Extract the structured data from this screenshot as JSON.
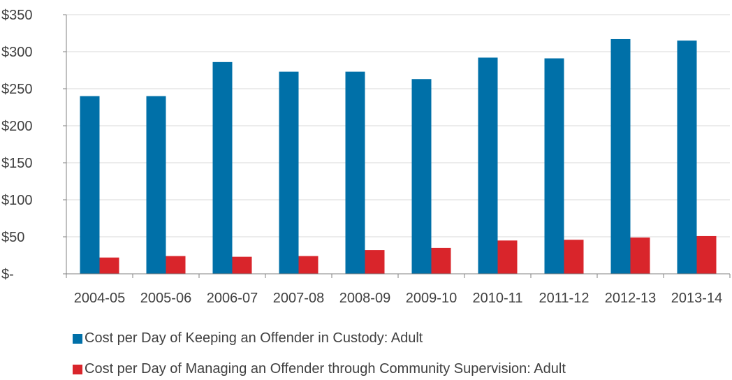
{
  "chart_data": {
    "type": "bar",
    "categories": [
      "2004-05",
      "2005-06",
      "2006-07",
      "2007-08",
      "2008-09",
      "2009-10",
      "2010-11",
      "2011-12",
      "2012-13",
      "2013-14"
    ],
    "series": [
      {
        "name": "Cost per Day of Keeping an Offender in Custody: Adult",
        "color": "#0070a8",
        "values": [
          240,
          240,
          286,
          273,
          273,
          263,
          292,
          291,
          317,
          315
        ]
      },
      {
        "name": "Cost per Day of Managing an Offender through Community Supervision: Adult",
        "color": "#d9252b",
        "values": [
          22,
          24,
          23,
          24,
          32,
          35,
          45,
          46,
          49,
          51
        ]
      }
    ],
    "ylim": [
      0,
      350
    ],
    "yticks": [
      0,
      50,
      100,
      150,
      200,
      250,
      300,
      350
    ],
    "ytick_labels": [
      "$-",
      "$50",
      "$100",
      "$150",
      "$200",
      "$250",
      "$300",
      "$350"
    ],
    "grid": true,
    "legend_position": "bottom",
    "title": "",
    "xlabel": "",
    "ylabel": ""
  }
}
